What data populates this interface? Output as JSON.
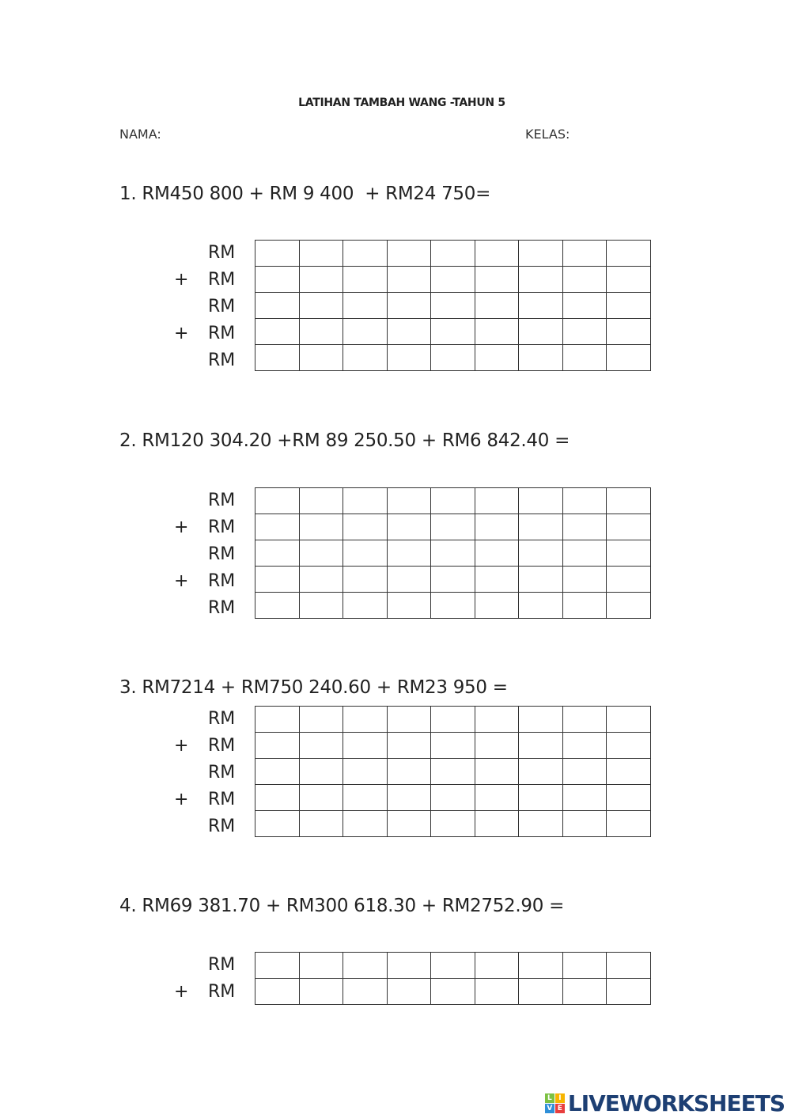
{
  "header": {
    "title": "LATIHAN TAMBAH WANG -TAHUN 5",
    "nama_label": "NAMA:",
    "kelas_label": "KELAS:"
  },
  "questions": [
    {
      "text": "1. RM450 800 + RM 9 400  + RM24 750=",
      "rows": [
        {
          "op": "",
          "label": "RM"
        },
        {
          "op": "+",
          "label": "RM"
        },
        {
          "op": "",
          "label": "RM"
        },
        {
          "op": "+",
          "label": "RM"
        },
        {
          "op": "",
          "label": "RM"
        }
      ]
    },
    {
      "text": "2. RM120 304.20 +RM 89 250.50 + RM6 842.40 =",
      "rows": [
        {
          "op": "",
          "label": "RM"
        },
        {
          "op": "+",
          "label": "RM"
        },
        {
          "op": "",
          "label": "RM"
        },
        {
          "op": "+",
          "label": "RM"
        },
        {
          "op": "",
          "label": "RM"
        }
      ]
    },
    {
      "text": "3. RM7214 + RM750 240.60 + RM23 950 =",
      "rows": [
        {
          "op": "",
          "label": "RM"
        },
        {
          "op": "+",
          "label": "RM"
        },
        {
          "op": "",
          "label": "RM"
        },
        {
          "op": "+",
          "label": "RM"
        },
        {
          "op": "",
          "label": "RM"
        }
      ]
    },
    {
      "text": "4. RM69 381.70 + RM300 618.30 + RM2752.90 =",
      "rows": [
        {
          "op": "",
          "label": "RM"
        },
        {
          "op": "+",
          "label": "RM"
        }
      ]
    }
  ],
  "logo": {
    "text": "LIVEWORKSHEETS",
    "tile_letters": [
      "L",
      "I",
      "V",
      "E"
    ],
    "tile_colors": [
      "#7cc142",
      "#f7b500",
      "#2f8fd8",
      "#e83e3e"
    ],
    "text_color": "#1d3f73"
  }
}
